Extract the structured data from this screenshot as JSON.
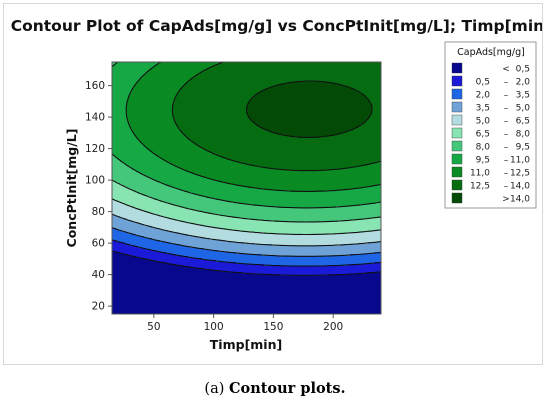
{
  "caption": {
    "label": "(a)",
    "text": "Contour plots."
  },
  "chart_data": {
    "type": "contour",
    "title": "Contour Plot of CapAds[mg/g] vs ConcPtInit[mg/L]; Timp[min]",
    "xlabel": "Timp[min]",
    "ylabel": "ConcPtInit[mg/L]",
    "xlim": [
      15,
      240
    ],
    "ylim": [
      15,
      175
    ],
    "xticks": [
      50,
      100,
      150,
      200
    ],
    "yticks": [
      20,
      40,
      60,
      80,
      100,
      120,
      140,
      160
    ],
    "grid": false,
    "legend": {
      "title": "CapAds[mg/g]",
      "placement": "right",
      "entries": [
        {
          "low": "<",
          "high": "0,5",
          "color": "#08088f"
        },
        {
          "low": "0,5",
          "high": "2,0",
          "color": "#1a1ad8"
        },
        {
          "low": "2,0",
          "high": "3,5",
          "color": "#1e66e6"
        },
        {
          "low": "3,5",
          "high": "5,0",
          "color": "#6fa3d8"
        },
        {
          "low": "5,0",
          "high": "6,5",
          "color": "#b2dce0"
        },
        {
          "low": "6,5",
          "high": "8,0",
          "color": "#88e4b2"
        },
        {
          "low": "8,0",
          "high": "9,5",
          "color": "#44c77a"
        },
        {
          "low": "9,5",
          "high": "11,0",
          "color": "#16a845"
        },
        {
          "low": "11,0",
          "high": "12,5",
          "color": "#0a8a22"
        },
        {
          "low": "12,5",
          "high": "14,0",
          "color": "#056c12"
        },
        {
          "low": ">",
          "high": "14,0",
          "color": "#034a06"
        }
      ]
    },
    "levels": [
      0.5,
      2.0,
      3.5,
      5.0,
      6.5,
      8.0,
      9.5,
      11.0,
      12.5,
      14.0
    ],
    "surface": {
      "form": "quadratic",
      "peak": {
        "x": 180,
        "y": 145,
        "value": 14.4
      },
      "curvature": {
        "x": 0.000145,
        "y": 0.00125
      },
      "interaction": 1e-05
    }
  }
}
